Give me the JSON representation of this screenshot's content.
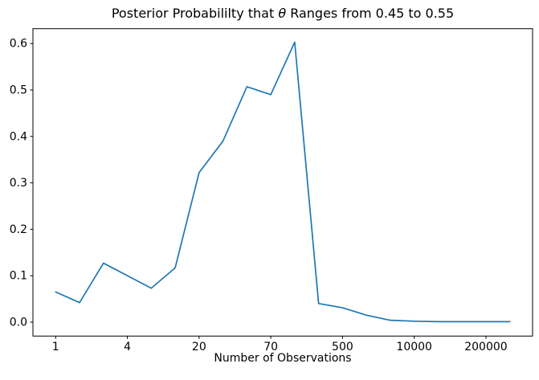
{
  "figure": {
    "title_pre": "Posterior Probabililty that ",
    "title_theta": "θ",
    "title_post": " Ranges from 0.45 to 0.55"
  },
  "chart_data": {
    "type": "line",
    "title": "Posterior Probabililty that θ Ranges from 0.45 to 0.55",
    "xlabel": "Number of Observations",
    "ylabel": "",
    "x_tick_positions": [
      0,
      3,
      6,
      9,
      12,
      15,
      18
    ],
    "x_tick_labels": [
      "1",
      "4",
      "20",
      "70",
      "500",
      "10000",
      "200000"
    ],
    "y_ticks": [
      0.0,
      0.1,
      0.2,
      0.3,
      0.4,
      0.5,
      0.6
    ],
    "y_tick_labels": [
      "0.0",
      "0.1",
      "0.2",
      "0.3",
      "0.4",
      "0.5",
      "0.6"
    ],
    "point_positions": [
      0,
      1,
      2,
      3,
      4,
      5,
      6,
      7,
      8,
      9,
      10,
      11,
      12,
      13,
      14,
      15,
      16,
      17,
      18,
      19
    ],
    "values": [
      0.065,
      0.042,
      0.127,
      0.1,
      0.073,
      0.117,
      0.322,
      0.39,
      0.507,
      0.49,
      0.603,
      0.04,
      0.031,
      0.015,
      0.004,
      0.002,
      0.001,
      0.001,
      0.001,
      0.001
    ],
    "xlim": [
      -0.95,
      19.95
    ],
    "ylim": [
      -0.03,
      0.632
    ],
    "line_color": "#1f77b4",
    "axes_color": "#000000",
    "background_color": "#ffffff",
    "grid": false
  }
}
